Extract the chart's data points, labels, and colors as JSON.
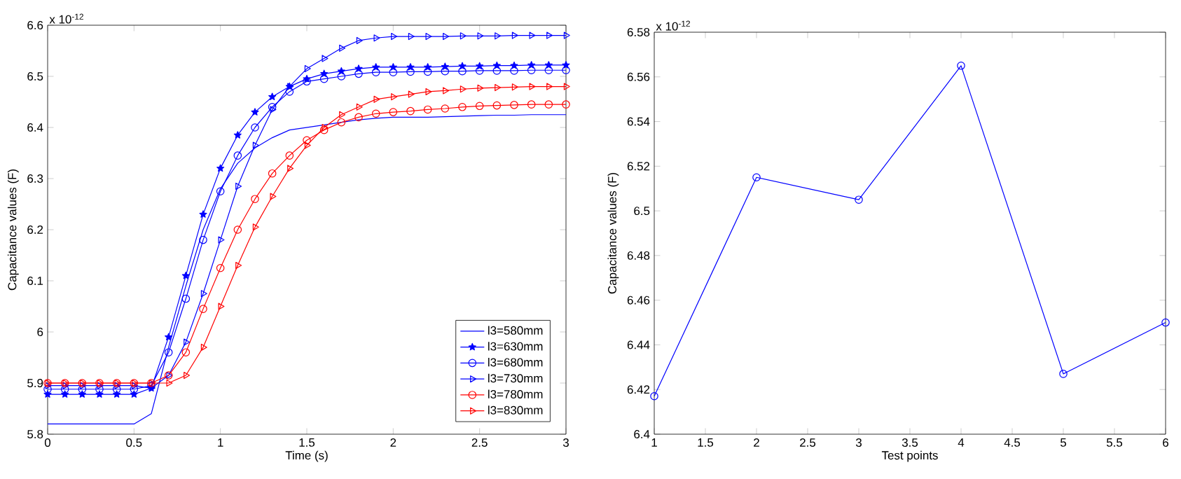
{
  "chart_data": [
    {
      "type": "line",
      "xlabel": "Time (s)",
      "ylabel": "Capacitance values (F)",
      "annotations": [
        "x 10$^{-12}$"
      ],
      "xlim": [
        0,
        3
      ],
      "ylim": [
        5.8,
        6.6
      ],
      "xticks": [
        0,
        0.5,
        1,
        1.5,
        2,
        2.5,
        3
      ],
      "yticks": [
        5.8,
        5.9,
        6,
        6.1,
        6.2,
        6.3,
        6.4,
        6.5,
        6.6
      ],
      "legend": "bottom right",
      "x": [
        0,
        0.1,
        0.2,
        0.3,
        0.4,
        0.5,
        0.6,
        0.7,
        0.8,
        0.9,
        1,
        1.1,
        1.2,
        1.3,
        1.4,
        1.5,
        1.6,
        1.7,
        1.8,
        1.9,
        2,
        2.1,
        2.2,
        2.3,
        2.4,
        2.5,
        2.6,
        2.7,
        2.8,
        2.9,
        3
      ],
      "series": [
        {
          "name": "l3=580mm",
          "color": "#0000ff",
          "marker": "none",
          "values": [
            5.82,
            5.82,
            5.82,
            5.82,
            5.82,
            5.82,
            5.84,
            5.97,
            6.09,
            6.2,
            6.28,
            6.33,
            6.36,
            6.38,
            6.395,
            6.4,
            6.405,
            6.41,
            6.415,
            6.418,
            6.42,
            6.42,
            6.42,
            6.421,
            6.422,
            6.423,
            6.424,
            6.424,
            6.425,
            6.425,
            6.425
          ]
        },
        {
          "name": "l3=630mm",
          "color": "#0000ff",
          "marker": "star",
          "values": [
            5.878,
            5.878,
            5.878,
            5.878,
            5.878,
            5.878,
            5.89,
            5.99,
            6.11,
            6.23,
            6.32,
            6.385,
            6.43,
            6.46,
            6.48,
            6.495,
            6.505,
            6.51,
            6.515,
            6.518,
            6.518,
            6.518,
            6.518,
            6.519,
            6.52,
            6.52,
            6.521,
            6.521,
            6.522,
            6.522,
            6.522
          ]
        },
        {
          "name": "l3=680mm",
          "color": "#0000ff",
          "marker": "circle",
          "values": [
            5.888,
            5.888,
            5.888,
            5.888,
            5.888,
            5.888,
            5.895,
            5.96,
            6.065,
            6.18,
            6.275,
            6.345,
            6.4,
            6.44,
            6.47,
            6.49,
            6.495,
            6.5,
            6.505,
            6.508,
            6.508,
            6.509,
            6.509,
            6.51,
            6.51,
            6.511,
            6.511,
            6.511,
            6.512,
            6.512,
            6.512
          ]
        },
        {
          "name": "l3=730mm",
          "color": "#0000ff",
          "marker": "triangle",
          "values": [
            5.895,
            5.895,
            5.895,
            5.895,
            5.895,
            5.895,
            5.89,
            5.915,
            5.98,
            6.075,
            6.18,
            6.285,
            6.365,
            6.435,
            6.48,
            6.515,
            6.535,
            6.555,
            6.57,
            6.575,
            6.578,
            6.578,
            6.578,
            6.578,
            6.579,
            6.579,
            6.579,
            6.58,
            6.58,
            6.58,
            6.58
          ]
        },
        {
          "name": "l3=780mm",
          "color": "#ff0000",
          "marker": "circle",
          "values": [
            5.9,
            5.9,
            5.9,
            5.9,
            5.9,
            5.9,
            5.9,
            5.915,
            5.96,
            6.045,
            6.125,
            6.2,
            6.26,
            6.31,
            6.345,
            6.375,
            6.395,
            6.41,
            6.42,
            6.427,
            6.43,
            6.432,
            6.435,
            6.437,
            6.44,
            6.442,
            6.443,
            6.444,
            6.445,
            6.445,
            6.445
          ]
        },
        {
          "name": "l3=830mm",
          "color": "#ff0000",
          "marker": "triangle",
          "values": [
            5.9,
            5.9,
            5.9,
            5.9,
            5.9,
            5.9,
            5.9,
            5.9,
            5.915,
            5.97,
            6.05,
            6.13,
            6.205,
            6.265,
            6.32,
            6.365,
            6.4,
            6.425,
            6.44,
            6.455,
            6.46,
            6.465,
            6.47,
            6.472,
            6.475,
            6.477,
            6.478,
            6.479,
            6.48,
            6.48,
            6.48
          ]
        }
      ]
    },
    {
      "type": "line",
      "xlabel": "Test points",
      "ylabel": "Capacitance values (F)",
      "annotations": [
        "x 10$^{-12}$"
      ],
      "xlim": [
        1,
        6
      ],
      "ylim": [
        6.4,
        6.58
      ],
      "xticks": [
        1,
        1.5,
        2,
        2.5,
        3,
        3.5,
        4,
        4.5,
        5,
        5.5,
        6
      ],
      "yticks": [
        6.4,
        6.42,
        6.44,
        6.46,
        6.48,
        6.5,
        6.52,
        6.54,
        6.56,
        6.58
      ],
      "x": [
        1,
        2,
        3,
        4,
        5,
        6
      ],
      "series": [
        {
          "color": "#0000ff",
          "marker": "circle",
          "values": [
            6.417,
            6.515,
            6.505,
            6.565,
            6.427,
            6.45
          ]
        }
      ]
    }
  ]
}
